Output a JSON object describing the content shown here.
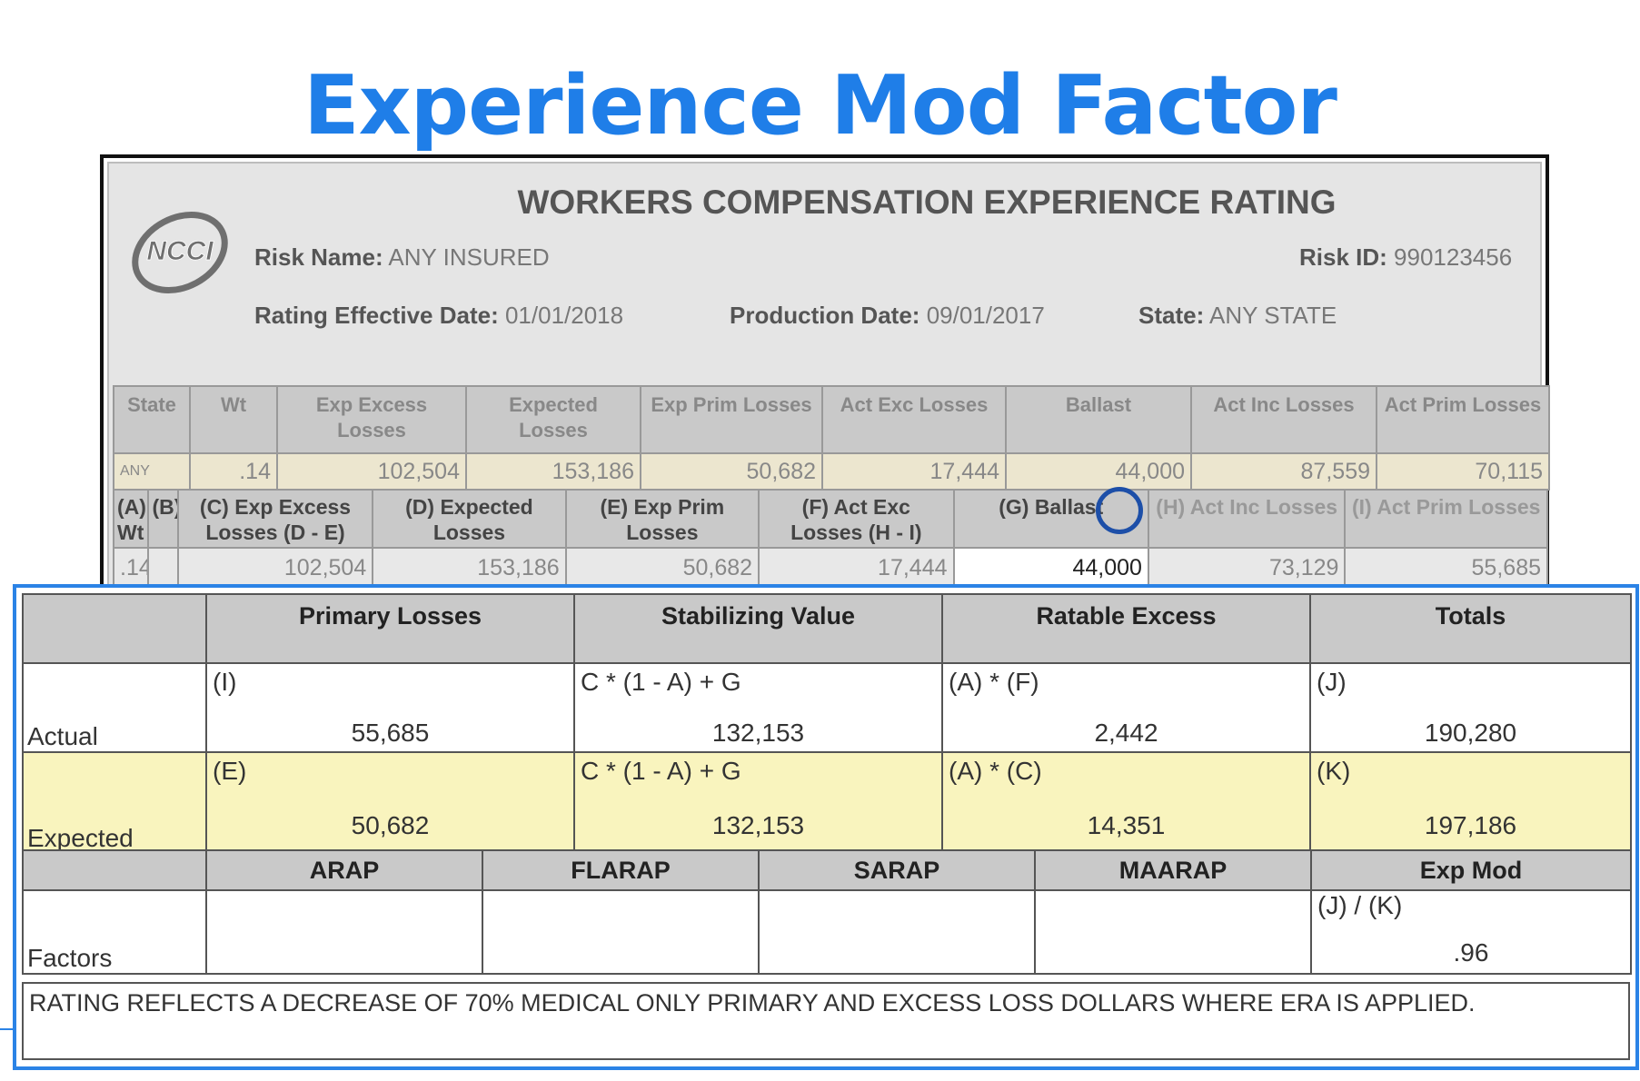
{
  "slide_title": "Experience Mod Factor",
  "worksheet": {
    "logo_text": "NCCI",
    "title": "WORKERS COMPENSATION EXPERIENCE RATING",
    "risk_name_label": "Risk Name:",
    "risk_name": "ANY INSURED",
    "risk_id_label": "Risk ID:",
    "risk_id": "990123456",
    "rating_date_label": "Rating Effective Date:",
    "rating_date": "01/01/2018",
    "production_date_label": "Production Date:",
    "production_date": "09/01/2017",
    "state_label": "State:",
    "state": "ANY STATE"
  },
  "summary_table": {
    "headers": [
      "State",
      "Wt",
      "Exp Excess Losses",
      "Expected Losses",
      "Exp Prim Losses",
      "Act Exc Losses",
      "Ballast",
      "Act Inc Losses",
      "Act Prim Losses"
    ],
    "row": [
      "ANY",
      ".14",
      "102,504",
      "153,186",
      "50,682",
      "17,444",
      "44,000",
      "87,559",
      "70,115"
    ]
  },
  "detail_table": {
    "headers": [
      "(A) Wt",
      "(B)",
      "(C) Exp Excess Losses (D - E)",
      "(D) Expected Losses",
      "(E) Exp Prim Losses",
      "(F) Act Exc Losses (H - I)",
      "(G) Ballast",
      "(H) Act Inc Losses",
      "(I) Act Prim Losses"
    ],
    "row": [
      ".14",
      "",
      "102,504",
      "153,186",
      "50,682",
      "17,444",
      "44,000",
      "73,129",
      "55,685"
    ]
  },
  "calc_table": {
    "headers": [
      "",
      "Primary Losses",
      "Stabilizing Value",
      "Ratable Excess",
      "Totals"
    ],
    "actual": {
      "label": "Actual",
      "cells": [
        {
          "formula": "(I)",
          "value": "55,685"
        },
        {
          "formula": "C * (1 - A) + G",
          "value": "132,153"
        },
        {
          "formula": "(A) * (F)",
          "value": "2,442"
        },
        {
          "formula": "(J)",
          "value": "190,280"
        }
      ]
    },
    "expected": {
      "label": "Expected",
      "cells": [
        {
          "formula": "(E)",
          "value": "50,682"
        },
        {
          "formula": "C * (1 - A) + G",
          "value": "132,153"
        },
        {
          "formula": "(A) * (C)",
          "value": "14,351"
        },
        {
          "formula": "(K)",
          "value": "197,186"
        }
      ]
    },
    "factor_headers": [
      "",
      "ARAP",
      "FLARAP",
      "SARAP",
      "MAARAP",
      "Exp Mod"
    ],
    "factors": {
      "label": "Factors",
      "exp_mod_formula": "(J) / (K)",
      "exp_mod_value": ".96"
    }
  },
  "note": "RATING REFLECTS A DECREASE OF 70% MEDICAL ONLY PRIMARY AND EXCESS LOSS DOLLARS WHERE ERA IS APPLIED.",
  "colors": {
    "title_blue": "#1f7ee8",
    "highlight_box": "#2b83e6",
    "expected_row": "#f9f4be",
    "header_gray": "#c9c9c9",
    "ballast_circle": "#1d4fa8"
  }
}
